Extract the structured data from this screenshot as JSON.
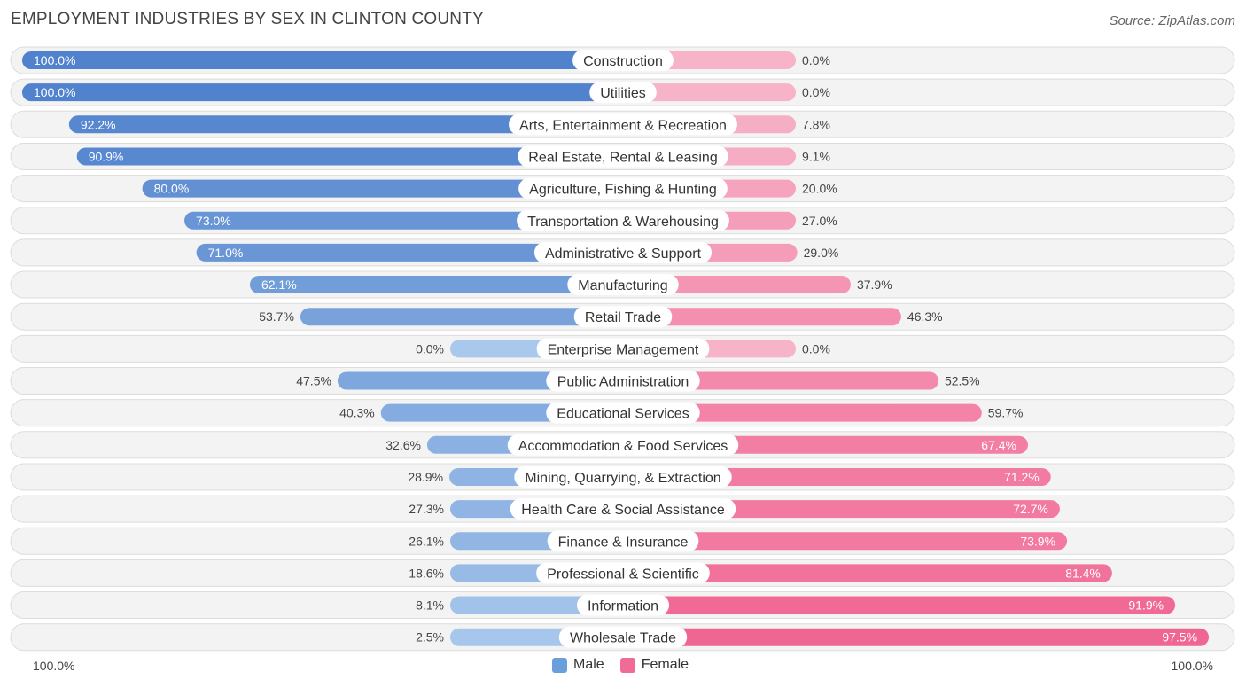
{
  "title": "EMPLOYMENT INDUSTRIES BY SEX IN CLINTON COUNTY",
  "source": "Source: ZipAtlas.com",
  "legend": {
    "male_label": "Male",
    "female_label": "Female",
    "male_color": "#6a9fdc",
    "female_color": "#f06b95"
  },
  "axis": {
    "left_label": "100.0%",
    "right_label": "100.0%"
  },
  "chart_data": {
    "type": "bar",
    "orientation": "horizontal-diverging",
    "title": "EMPLOYMENT INDUSTRIES BY SEX IN CLINTON COUNTY",
    "xlim": [
      -100,
      100
    ],
    "series": [
      {
        "name": "Male",
        "color": "#6a9fdc"
      },
      {
        "name": "Female",
        "color": "#f06b95"
      }
    ],
    "rows": [
      {
        "category": "Construction",
        "male": 100.0,
        "female": 0.0,
        "male_label": "100.0%",
        "female_label": "0.0%"
      },
      {
        "category": "Utilities",
        "male": 100.0,
        "female": 0.0,
        "male_label": "100.0%",
        "female_label": "0.0%"
      },
      {
        "category": "Arts, Entertainment & Recreation",
        "male": 92.2,
        "female": 7.8,
        "male_label": "92.2%",
        "female_label": "7.8%"
      },
      {
        "category": "Real Estate, Rental & Leasing",
        "male": 90.9,
        "female": 9.1,
        "male_label": "90.9%",
        "female_label": "9.1%"
      },
      {
        "category": "Agriculture, Fishing & Hunting",
        "male": 80.0,
        "female": 20.0,
        "male_label": "80.0%",
        "female_label": "20.0%"
      },
      {
        "category": "Transportation & Warehousing",
        "male": 73.0,
        "female": 27.0,
        "male_label": "73.0%",
        "female_label": "27.0%"
      },
      {
        "category": "Administrative & Support",
        "male": 71.0,
        "female": 29.0,
        "male_label": "71.0%",
        "female_label": "29.0%"
      },
      {
        "category": "Manufacturing",
        "male": 62.1,
        "female": 37.9,
        "male_label": "62.1%",
        "female_label": "37.9%"
      },
      {
        "category": "Retail Trade",
        "male": 53.7,
        "female": 46.3,
        "male_label": "53.7%",
        "female_label": "46.3%"
      },
      {
        "category": "Enterprise Management",
        "male": 0.0,
        "female": 0.0,
        "male_label": "0.0%",
        "female_label": "0.0%"
      },
      {
        "category": "Public Administration",
        "male": 47.5,
        "female": 52.5,
        "male_label": "47.5%",
        "female_label": "52.5%"
      },
      {
        "category": "Educational Services",
        "male": 40.3,
        "female": 59.7,
        "male_label": "40.3%",
        "female_label": "59.7%"
      },
      {
        "category": "Accommodation & Food Services",
        "male": 32.6,
        "female": 67.4,
        "male_label": "32.6%",
        "female_label": "67.4%"
      },
      {
        "category": "Mining, Quarrying, & Extraction",
        "male": 28.9,
        "female": 71.2,
        "male_label": "28.9%",
        "female_label": "71.2%"
      },
      {
        "category": "Health Care & Social Assistance",
        "male": 27.3,
        "female": 72.7,
        "male_label": "27.3%",
        "female_label": "72.7%"
      },
      {
        "category": "Finance & Insurance",
        "male": 26.1,
        "female": 73.9,
        "male_label": "26.1%",
        "female_label": "73.9%"
      },
      {
        "category": "Professional & Scientific",
        "male": 18.6,
        "female": 81.4,
        "male_label": "18.6%",
        "female_label": "81.4%"
      },
      {
        "category": "Information",
        "male": 8.1,
        "female": 91.9,
        "male_label": "8.1%",
        "female_label": "91.9%"
      },
      {
        "category": "Wholesale Trade",
        "male": 2.5,
        "female": 97.5,
        "male_label": "2.5%",
        "female_label": "97.5%"
      }
    ]
  }
}
